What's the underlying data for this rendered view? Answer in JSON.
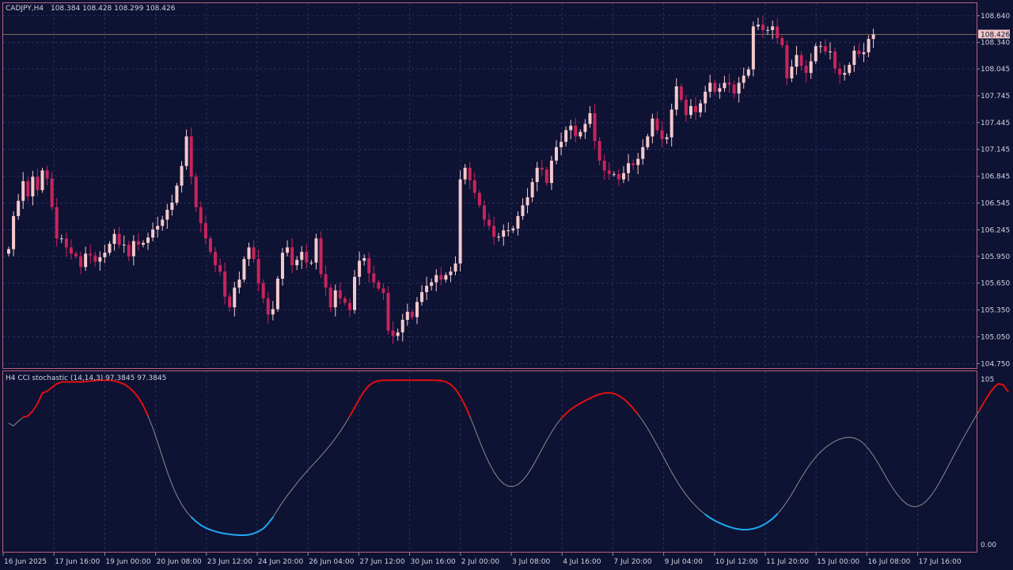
{
  "main": {
    "title": "CADJPY,H4",
    "ohlc": "108.384 108.428 108.299 108.426",
    "current_price": "108.426",
    "price_ticks": [
      "108.640",
      "108.340",
      "108.045",
      "107.745",
      "107.445",
      "107.145",
      "106.845",
      "106.545",
      "106.245",
      "105.950",
      "105.650",
      "105.350",
      "105.050",
      "104.750"
    ],
    "colors": {
      "bull": "#f5c9cc",
      "bear": "#c8245c",
      "grid": "#2a3160",
      "frame": "#b9617c",
      "background": "#0e1233"
    }
  },
  "indicator": {
    "title": "H4 CCI stochastic (14,14,3) 97.3845 97.3845",
    "ticks": [
      "105",
      "0.00"
    ],
    "colors": {
      "line": "#8c8c8c",
      "overbought": "#e01010",
      "oversold": "#1ea8f0"
    }
  },
  "time_axis": {
    "labels": [
      "16 Jun 2025",
      "17 Jun 16:00",
      "19 Jun 00:00",
      "20 Jun 08:00",
      "23 Jun 12:00",
      "24 Jun 20:00",
      "26 Jun 04:00",
      "27 Jun 12:00",
      "30 Jun 16:00",
      "2 Jul 00:00",
      "3 Jul 08:00",
      "4 Jul 16:00",
      "7 Jul 20:00",
      "9 Jul 04:00",
      "10 Jul 12:00",
      "11 Jul 20:00",
      "15 Jul 00:00",
      "16 Jul 08:00",
      "17 Jul 16:00"
    ]
  },
  "chart_data": {
    "type": "candlestick",
    "candle_closes": [
      106.03,
      106.4,
      106.57,
      106.79,
      106.62,
      106.84,
      106.69,
      106.91,
      106.82,
      106.5,
      106.15,
      106.15,
      106.05,
      105.98,
      105.95,
      105.83,
      105.98,
      105.96,
      105.89,
      105.94,
      105.99,
      106.09,
      106.2,
      106.08,
      106.08,
      105.95,
      106.12,
      106.08,
      106.1,
      106.16,
      106.25,
      106.29,
      106.36,
      106.47,
      106.55,
      106.74,
      106.96,
      107.29,
      106.84,
      106.5,
      106.32,
      106.15,
      106.0,
      105.85,
      105.78,
      105.5,
      105.38,
      105.6,
      105.69,
      105.92,
      106.05,
      105.92,
      105.65,
      105.48,
      105.3,
      105.36,
      105.7,
      105.99,
      106.05,
      105.85,
      105.91,
      106.0,
      105.88,
      105.88,
      106.15,
      105.75,
      105.6,
      105.38,
      105.57,
      105.48,
      105.43,
      105.35,
      105.72,
      105.9,
      105.93,
      105.76,
      105.66,
      105.59,
      105.54,
      105.12,
      105.06,
      105.1,
      105.24,
      105.33,
      105.27,
      105.44,
      105.55,
      105.62,
      105.66,
      105.74,
      105.69,
      105.74,
      105.78,
      105.87,
      106.81,
      106.94,
      106.8,
      106.66,
      106.52,
      106.36,
      106.29,
      106.17,
      106.17,
      106.24,
      106.24,
      106.26,
      106.4,
      106.52,
      106.61,
      106.78,
      106.94,
      106.92,
      106.77,
      107.02,
      107.17,
      107.23,
      107.36,
      107.41,
      107.29,
      107.34,
      107.43,
      107.55,
      107.24,
      107.02,
      106.91,
      106.87,
      106.87,
      106.81,
      106.88,
      106.99,
      106.97,
      107.04,
      107.17,
      107.29,
      107.49,
      107.36,
      107.26,
      107.28,
      107.59,
      107.85,
      107.7,
      107.53,
      107.63,
      107.56,
      107.66,
      107.79,
      107.89,
      107.79,
      107.83,
      107.89,
      107.87,
      107.77,
      107.89,
      107.97,
      108.04,
      108.52,
      108.54,
      108.48,
      108.48,
      108.52,
      108.39,
      108.31,
      107.94,
      108.07,
      108.2,
      108.08,
      108.0,
      108.13,
      108.3,
      108.3,
      108.24,
      108.24,
      108.05,
      107.98,
      108.0,
      108.09,
      108.25,
      108.21,
      108.23,
      108.38,
      108.43
    ],
    "price_range": [
      104.7,
      108.78
    ],
    "indicator_values": [
      77.1,
      75.4,
      78.3,
      80.8,
      81.7,
      84.8,
      89.4,
      96.2,
      97.4,
      99.8,
      102.1,
      103.3,
      103.3,
      103.3,
      103.3,
      103.3,
      103.5,
      103.8,
      104.2,
      104.4,
      104.4,
      104.3,
      103.9,
      103.1,
      101.9,
      99.9,
      97.1,
      93.4,
      88.2,
      81.6,
      74.1,
      65.1,
      55.6,
      46.4,
      38.1,
      31.2,
      25.6,
      21.0,
      17.5,
      14.7,
      12.4,
      10.7,
      9.4,
      8.4,
      7.6,
      7.0,
      6.6,
      6.2,
      6.0,
      6.0,
      6.3,
      7.1,
      8.4,
      10.2,
      13.4,
      17.4,
      22.2,
      27.0,
      31.2,
      35.2,
      39.0,
      42.8,
      46.3,
      49.7,
      52.9,
      56.3,
      59.8,
      63.5,
      67.5,
      71.8,
      76.5,
      81.6,
      87.0,
      92.4,
      97.4,
      101.0,
      103.1,
      104.0,
      104.3,
      104.3,
      104.4,
      104.4,
      104.4,
      104.4,
      104.4,
      104.4,
      104.4,
      104.4,
      104.4,
      104.3,
      104.1,
      103.4,
      101.7,
      98.7,
      94.1,
      88.3,
      81.4,
      73.8,
      66.0,
      58.5,
      51.8,
      46.2,
      41.8,
      38.7,
      37.1,
      36.9,
      38.2,
      40.8,
      44.6,
      49.4,
      54.8,
      60.6,
      66.2,
      71.4,
      76.1,
      80.0,
      83.2,
      85.8,
      87.9,
      89.7,
      91.4,
      92.9,
      94.3,
      95.4,
      96.2,
      96.4,
      95.9,
      94.6,
      92.6,
      89.8,
      86.5,
      82.7,
      78.5,
      73.8,
      68.6,
      63.0,
      57.3,
      51.6,
      46.0,
      40.8,
      36.0,
      31.7,
      27.9,
      24.6,
      21.7,
      19.2,
      17.0,
      15.2,
      13.7,
      12.4,
      11.3,
      10.4,
      9.8,
      9.5,
      9.6,
      10.1,
      11.0,
      12.4,
      14.2,
      16.5,
      19.4,
      23.0,
      27.3,
      32.1,
      37.3,
      42.5,
      47.4,
      51.8,
      55.6,
      58.9,
      61.6,
      63.8,
      65.6,
      67.0,
      67.9,
      68.2,
      67.7,
      66.4,
      64.1,
      60.7,
      56.5,
      51.6,
      46.3,
      41.0,
      36.1,
      31.8,
      28.3,
      25.7,
      24.3,
      24.1,
      25.3,
      27.6,
      31.1,
      35.6,
      40.8,
      46.4,
      52.3,
      58.1,
      63.8,
      69.3,
      74.6,
      79.8,
      85.0,
      90.2,
      95.2,
      99.4,
      102.1,
      101.5,
      97.3
    ],
    "indicator_range": [
      0,
      105
    ],
    "overbought_level": 80,
    "oversold_level": 20
  }
}
